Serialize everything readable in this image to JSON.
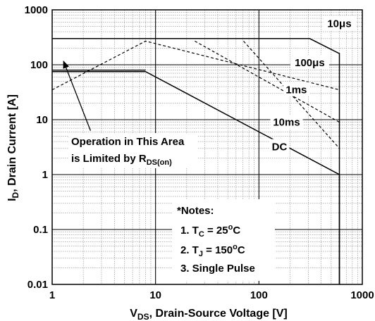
{
  "chart_data": {
    "type": "line",
    "title": "",
    "xlabel": {
      "prefix": "V",
      "sub": "DS",
      "suffix": ", Drain-Source Voltage [V]"
    },
    "ylabel": {
      "prefix": "I",
      "sub": "D",
      "suffix": ", Drain Current [A]"
    },
    "xscale": "log",
    "yscale": "log",
    "xlim": [
      1,
      1000
    ],
    "ylim": [
      0.01,
      1000
    ],
    "grid": true,
    "x_ticks": [
      "1",
      "10",
      "100",
      "1000"
    ],
    "y_ticks": [
      "0.01",
      "0.1",
      "1",
      "10",
      "100",
      "1000"
    ],
    "series": [
      {
        "name": "10μs",
        "style": "solid",
        "points": [
          [
            1,
            300
          ],
          [
            310,
            300
          ],
          [
            600,
            160
          ],
          [
            600,
            0.01
          ]
        ]
      },
      {
        "name": "100μs",
        "style": "dashed",
        "points": [
          [
            1,
            35
          ],
          [
            8,
            270
          ],
          [
            600,
            35
          ]
        ]
      },
      {
        "name": "1ms",
        "style": "dashed",
        "points": [
          [
            24,
            270
          ],
          [
            600,
            9
          ]
        ]
      },
      {
        "name": "10ms",
        "style": "dashed",
        "points": [
          [
            71,
            270
          ],
          [
            600,
            3
          ]
        ]
      },
      {
        "name": "DC",
        "style": "solid",
        "points": [
          [
            1,
            75
          ],
          [
            8,
            75
          ],
          [
            600,
            1
          ],
          [
            600,
            0.01
          ]
        ]
      },
      {
        "name": "",
        "style": "solid",
        "points": [
          [
            1,
            80
          ],
          [
            8,
            80
          ]
        ]
      }
    ],
    "series_labels": [
      {
        "text": "10μs",
        "x": 600,
        "y": 560
      },
      {
        "text": "100μs",
        "x": 310,
        "y": 110
      },
      {
        "text": "1ms",
        "x": 230,
        "y": 35
      },
      {
        "text": "10ms",
        "x": 185,
        "y": 9
      },
      {
        "text": "DC",
        "x": 158,
        "y": 3.2
      }
    ],
    "annotation": {
      "line1": "Operation in This Area",
      "line2_prefix": "is Limited by R",
      "line2_sub": "DS(on)",
      "arrow_from": [
        2.35,
        6.3
      ],
      "arrow_to": [
        1.28,
        120
      ]
    },
    "notes": {
      "title": "*Notes:",
      "n1_prefix": "1. T",
      "n1_sub": "C",
      "n1_value": " = 25",
      "n1_sup": "o",
      "n1_unit": "C",
      "n2_prefix": "2. T",
      "n2_sub": "J",
      "n2_value": " = 150",
      "n2_sup": "o",
      "n2_unit": "C",
      "n3": "3. Single Pulse"
    }
  }
}
